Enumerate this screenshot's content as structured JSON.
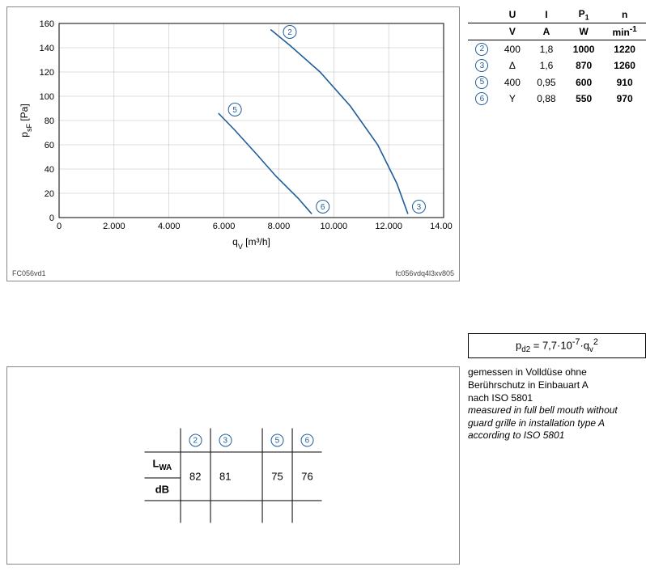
{
  "chart": {
    "type": "line",
    "x_min": 0,
    "x_max": 14000,
    "x_step": 2000,
    "y_min": 0,
    "y_max": 160,
    "y_step": 20,
    "x_ticks": [
      "0",
      "2.000",
      "4.000",
      "6.000",
      "8.000",
      "10.000",
      "12.000",
      "14.000"
    ],
    "y_ticks": [
      "0",
      "20",
      "40",
      "60",
      "80",
      "100",
      "120",
      "140",
      "160"
    ],
    "x_label_html": "q<sub>V</sub> [m³/h]",
    "y_label_html": "p<sub>sF</sub> [Pa]",
    "grid_color": "#bbbbbb",
    "axis_color": "#000000",
    "line_color": "#1f5d9a",
    "line_width": 1.6,
    "background": "#ffffff",
    "curves": {
      "2": [
        [
          7700,
          155
        ],
        [
          8400,
          142
        ],
        [
          9500,
          120
        ],
        [
          10600,
          92
        ],
        [
          11600,
          60
        ],
        [
          12300,
          28
        ],
        [
          12700,
          3
        ]
      ],
      "3": [
        [
          12800,
          2
        ]
      ],
      "5": [
        [
          5800,
          86
        ],
        [
          6400,
          72
        ],
        [
          7200,
          52
        ],
        [
          7900,
          34
        ],
        [
          8700,
          16
        ],
        [
          9200,
          3
        ]
      ],
      "6": [
        [
          9400,
          2
        ]
      ]
    },
    "curve_labels": [
      {
        "id": "2",
        "x": 8400,
        "y": 153
      },
      {
        "id": "3",
        "x": 13100,
        "y": 9
      },
      {
        "id": "5",
        "x": 6400,
        "y": 89
      },
      {
        "id": "6",
        "x": 9600,
        "y": 9
      }
    ],
    "left_note": "FC056vd1",
    "right_note": "fc056vdq4l3xv805"
  },
  "param_table": {
    "headers": [
      "U",
      "I",
      "P₁",
      "n"
    ],
    "header_syms": {
      "U": "U",
      "I": "I",
      "P": "P",
      "Psub": "1",
      "n": "n"
    },
    "units": [
      "V",
      "A",
      "W",
      "min⁻¹"
    ],
    "unit_syms": {
      "V": "V",
      "A": "A",
      "W": "W",
      "min": "min",
      "minsup": "-1"
    },
    "rows": [
      {
        "id": "2",
        "U": "400",
        "I": "1,8",
        "P": "1000",
        "n": "1220"
      },
      {
        "id": "3",
        "U": "Δ",
        "I": "1,6",
        "P": "870",
        "n": "1260"
      },
      {
        "id": "5",
        "U": "400",
        "I": "0,95",
        "P": "600",
        "n": "910"
      },
      {
        "id": "6",
        "U": "Y",
        "I": "0,88",
        "P": "550",
        "n": "970"
      }
    ]
  },
  "formula": {
    "p": "p",
    "psub": "d2",
    "eq": " = 7,7·10",
    "exp": "-7",
    "tail": "·q",
    "qsub": "v",
    "sq": "2"
  },
  "notes": {
    "de1": "gemessen in Volldüse ohne",
    "de2": "Berührschutz in Einbauart A",
    "de3": "nach ISO 5801",
    "en1": "measured in full bell mouth without",
    "en2": "guard grille in installation type A",
    "en3": "according to ISO 5801"
  },
  "sound": {
    "L": "L",
    "Lsub": "WA",
    "unit": "dB",
    "cols": [
      "2",
      "3",
      "5",
      "6"
    ],
    "values": {
      "2": "82",
      "3": "81",
      "5": "75",
      "6": "76"
    }
  }
}
